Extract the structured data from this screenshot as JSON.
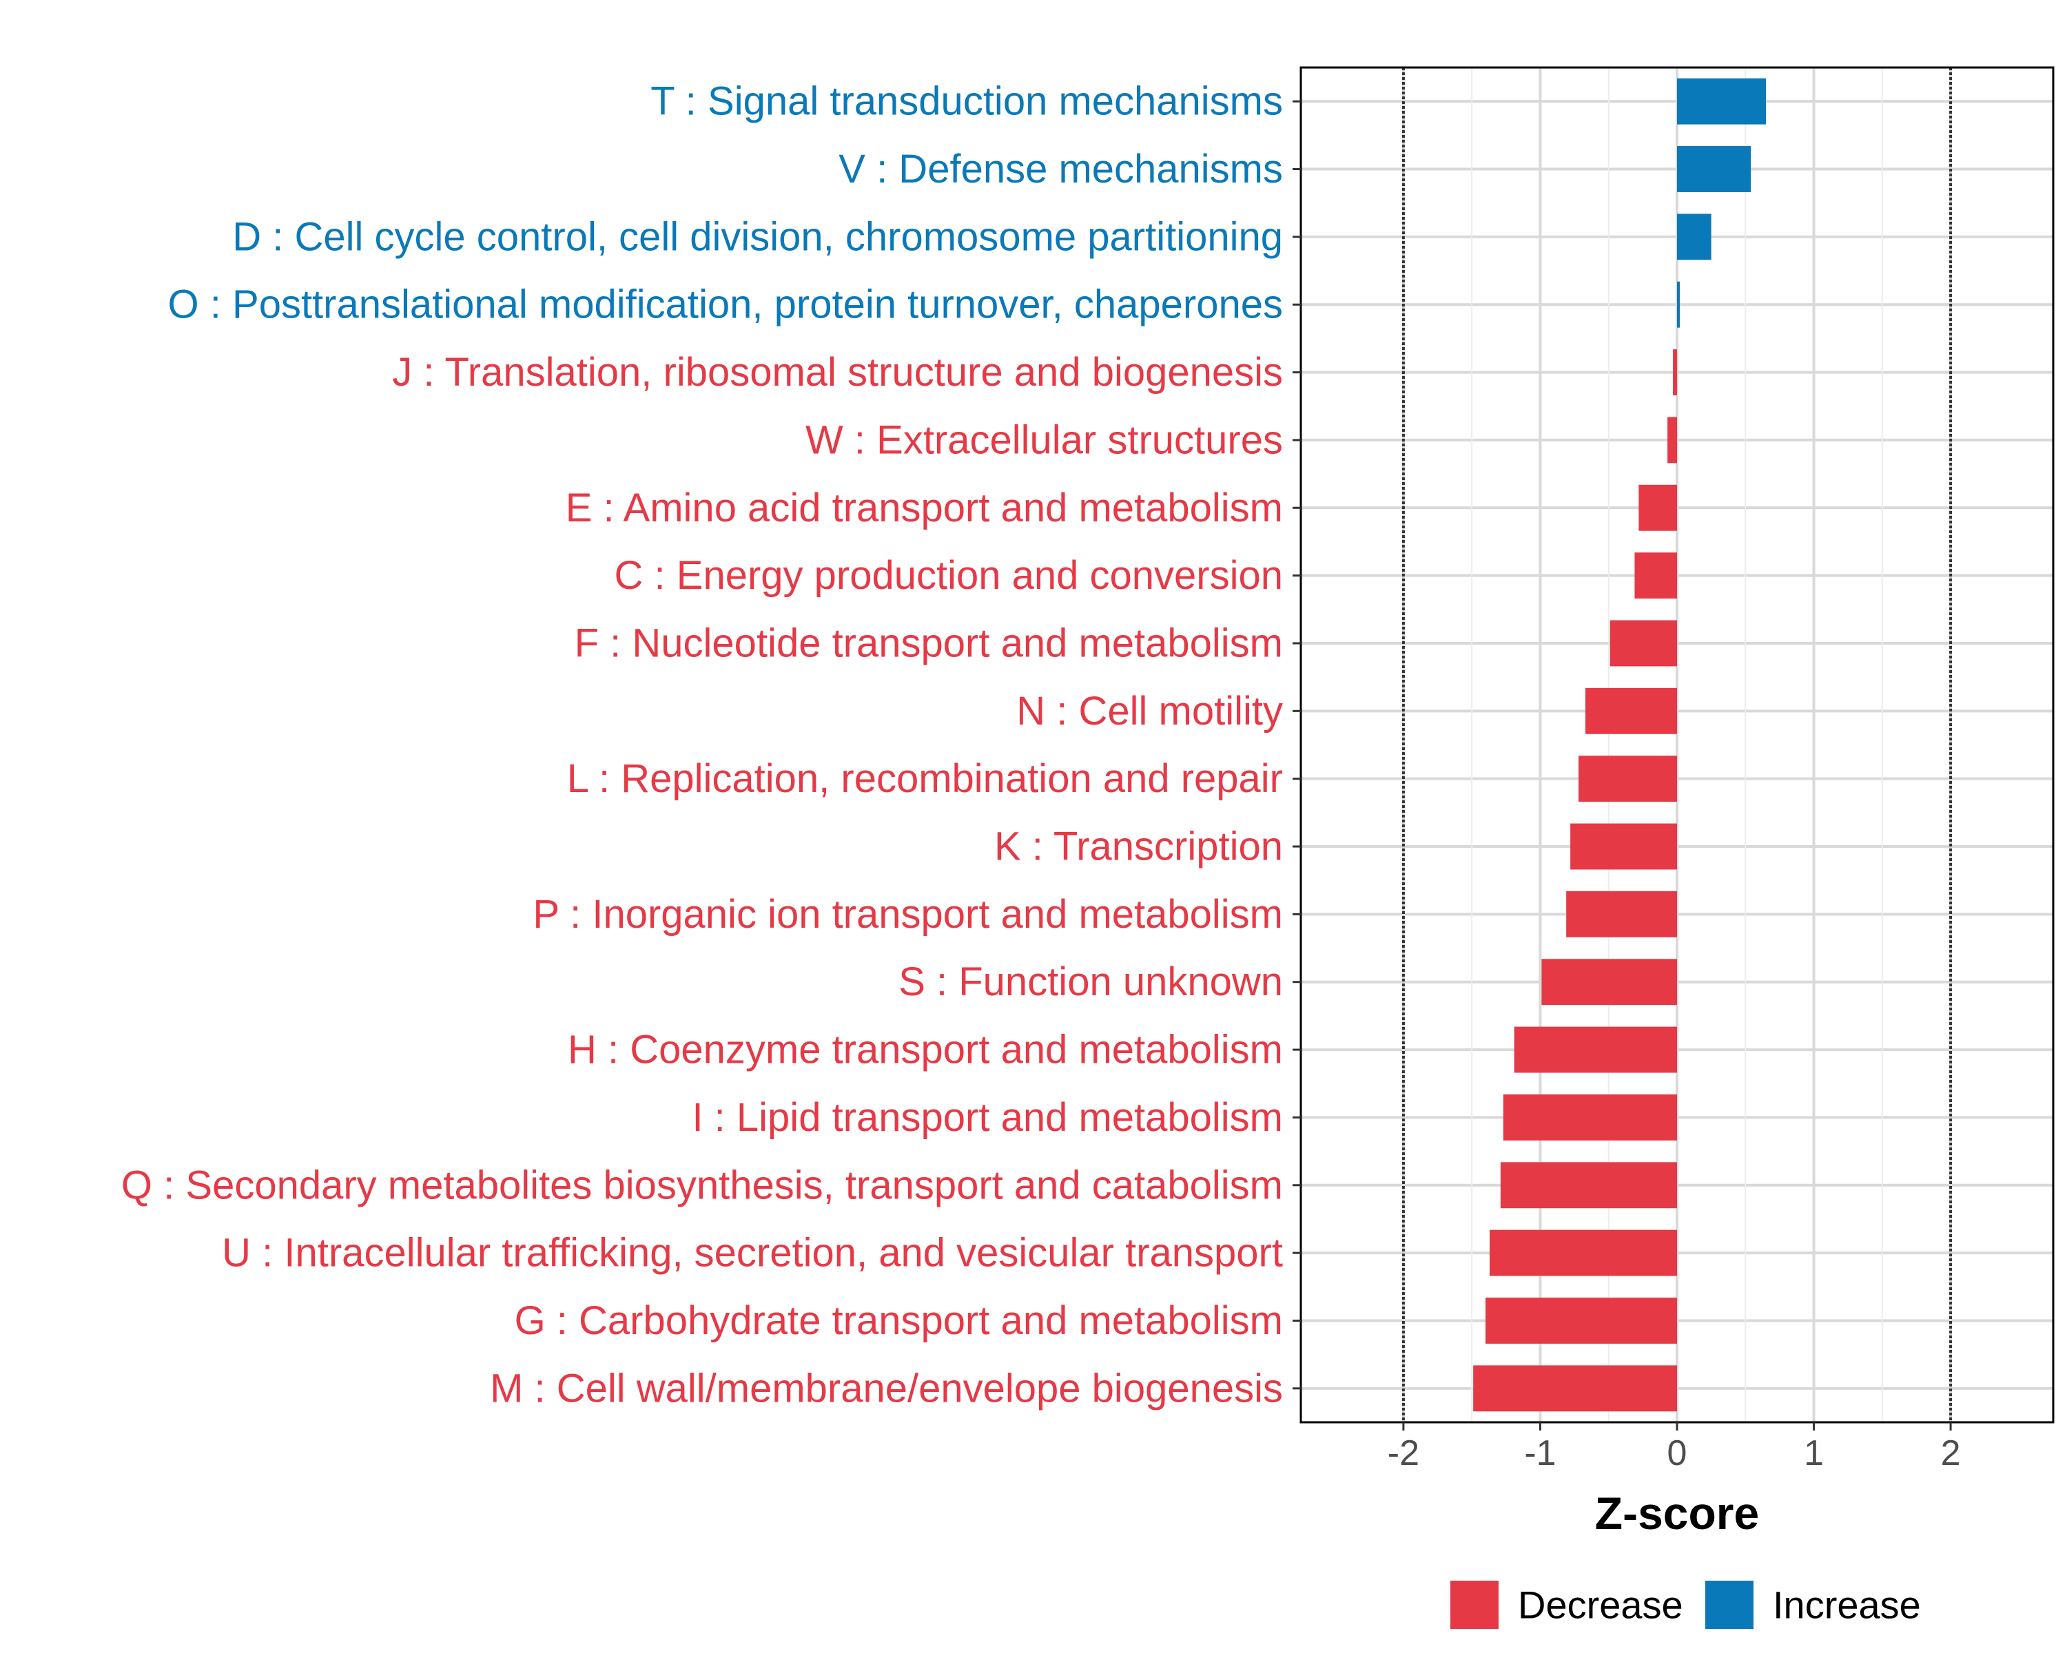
{
  "chart_data": {
    "type": "bar",
    "orientation": "horizontal",
    "title": "",
    "xlabel": "Z-score",
    "ylabel": "",
    "xlim": [
      -2.75,
      2.75
    ],
    "xticks": [
      -2,
      -1,
      0,
      1,
      2
    ],
    "tick_labels": [
      "-2",
      "-1",
      "0",
      "1",
      "2"
    ],
    "reference_lines": [
      -2,
      2
    ],
    "grid": true,
    "categories": [
      "T : Signal transduction mechanisms",
      "V : Defense mechanisms",
      "D : Cell cycle control, cell division, chromosome partitioning",
      "O : Posttranslational modification, protein turnover, chaperones",
      "J : Translation, ribosomal structure and biogenesis",
      "W : Extracellular structures",
      "E : Amino acid transport and metabolism",
      "C : Energy production and conversion",
      "F : Nucleotide transport and metabolism",
      "N : Cell motility",
      "L : Replication, recombination and repair",
      "K : Transcription",
      "P : Inorganic ion transport and metabolism",
      "S : Function unknown",
      "H : Coenzyme transport and metabolism",
      "I : Lipid transport and metabolism",
      "Q : Secondary metabolites biosynthesis, transport and catabolism",
      "U : Intracellular trafficking, secretion, and vesicular transport",
      "G : Carbohydrate transport and metabolism",
      "M : Cell wall/membrane/envelope biogenesis"
    ],
    "values": [
      0.65,
      0.54,
      0.25,
      0.02,
      -0.03,
      -0.07,
      -0.28,
      -0.31,
      -0.49,
      -0.67,
      -0.72,
      -0.78,
      -0.81,
      -0.99,
      -1.19,
      -1.27,
      -1.29,
      -1.37,
      -1.4,
      -1.49
    ],
    "legend": {
      "position": "bottom",
      "items": [
        {
          "label": "Decrease",
          "color": "#e63946"
        },
        {
          "label": "Increase",
          "color": "#0a79b9"
        }
      ]
    },
    "colors": {
      "decrease": "#e63946",
      "increase": "#0a79b9",
      "grid": "#d9d9d9",
      "reference_line": "#333333"
    }
  }
}
